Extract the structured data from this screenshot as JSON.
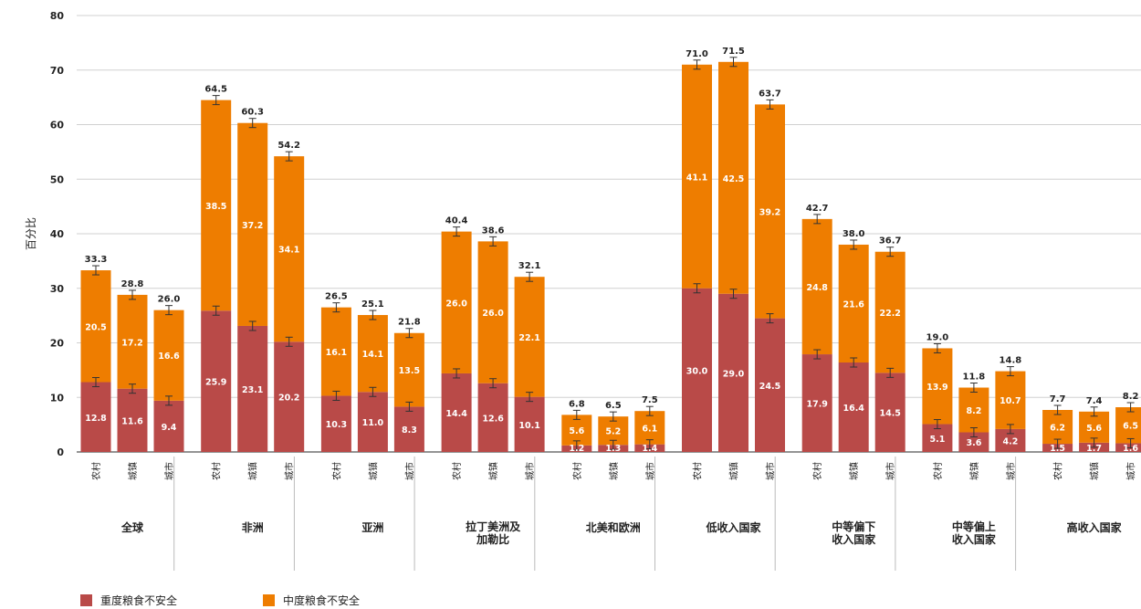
{
  "chart_data": {
    "type": "bar",
    "stacked": true,
    "ylabel": "百分比",
    "ylim": [
      0,
      80
    ],
    "yticks": [
      0,
      10,
      20,
      30,
      40,
      50,
      60,
      70,
      80
    ],
    "grid": true,
    "colors": {
      "severe": "#b94a48",
      "moderate": "#ee7d00"
    },
    "series_names": {
      "severe": "重度粮食不安全",
      "moderate": "中度粮食不安全"
    },
    "groups": [
      {
        "label": [
          "全球"
        ],
        "bars": [
          {
            "category": "农村",
            "severe": 12.8,
            "moderate": 20.5,
            "total": 33.3
          },
          {
            "category": "城镇",
            "severe": 11.6,
            "moderate": 17.2,
            "total": 28.8
          },
          {
            "category": "城市",
            "severe": 9.4,
            "moderate": 16.6,
            "total": 26.0
          }
        ]
      },
      {
        "label": [
          "非洲"
        ],
        "bars": [
          {
            "category": "农村",
            "severe": 25.9,
            "moderate": 38.5,
            "total": 64.5
          },
          {
            "category": "城镇",
            "severe": 23.1,
            "moderate": 37.2,
            "total": 60.3
          },
          {
            "category": "城市",
            "severe": 20.2,
            "moderate": 34.1,
            "total": 54.2
          }
        ]
      },
      {
        "label": [
          "亚洲"
        ],
        "bars": [
          {
            "category": "农村",
            "severe": 10.3,
            "moderate": 16.1,
            "total": 26.5
          },
          {
            "category": "城镇",
            "severe": 11.0,
            "moderate": 14.1,
            "total": 25.1
          },
          {
            "category": "城市",
            "severe": 8.3,
            "moderate": 13.5,
            "total": 21.8
          }
        ]
      },
      {
        "label": [
          "拉丁美洲及",
          "加勒比"
        ],
        "bars": [
          {
            "category": "农村",
            "severe": 14.4,
            "moderate": 26.0,
            "total": 40.4
          },
          {
            "category": "城镇",
            "severe": 12.6,
            "moderate": 26.0,
            "total": 38.6
          },
          {
            "category": "城市",
            "severe": 10.1,
            "moderate": 22.1,
            "total": 32.1
          }
        ]
      },
      {
        "label": [
          "北美和欧洲"
        ],
        "bars": [
          {
            "category": "农村",
            "severe": 1.2,
            "moderate": 5.6,
            "total": 6.8
          },
          {
            "category": "城镇",
            "severe": 1.3,
            "moderate": 5.2,
            "total": 6.5
          },
          {
            "category": "城市",
            "severe": 1.4,
            "moderate": 6.1,
            "total": 7.5
          }
        ]
      },
      {
        "label": [
          "低收入国家"
        ],
        "bars": [
          {
            "category": "农村",
            "severe": 30.0,
            "moderate": 41.1,
            "total": 71.0
          },
          {
            "category": "城镇",
            "severe": 29.0,
            "moderate": 42.5,
            "total": 71.5
          },
          {
            "category": "城市",
            "severe": 24.5,
            "moderate": 39.2,
            "total": 63.7
          }
        ]
      },
      {
        "label": [
          "中等偏下",
          "收入国家"
        ],
        "bars": [
          {
            "category": "农村",
            "severe": 17.9,
            "moderate": 24.8,
            "total": 42.7
          },
          {
            "category": "城镇",
            "severe": 16.4,
            "moderate": 21.6,
            "total": 38.0
          },
          {
            "category": "城市",
            "severe": 14.5,
            "moderate": 22.2,
            "total": 36.7
          }
        ]
      },
      {
        "label": [
          "中等偏上",
          "收入国家"
        ],
        "bars": [
          {
            "category": "农村",
            "severe": 5.1,
            "moderate": 13.9,
            "total": 19.0
          },
          {
            "category": "城镇",
            "severe": 3.6,
            "moderate": 8.2,
            "total": 11.8
          },
          {
            "category": "城市",
            "severe": 4.2,
            "moderate": 10.7,
            "total": 14.8
          }
        ]
      },
      {
        "label": [
          "高收入国家"
        ],
        "bars": [
          {
            "category": "农村",
            "severe": 1.5,
            "moderate": 6.2,
            "total": 7.7
          },
          {
            "category": "城镇",
            "severe": 1.7,
            "moderate": 5.6,
            "total": 7.4
          },
          {
            "category": "城市",
            "severe": 1.6,
            "moderate": 6.5,
            "total": 8.2
          }
        ]
      }
    ]
  },
  "legend": {
    "severe": {
      "label": "重度粮食不安全",
      "color": "#b94a48"
    },
    "moderate": {
      "label": "中度粮食不安全",
      "color": "#ee7d00"
    }
  }
}
